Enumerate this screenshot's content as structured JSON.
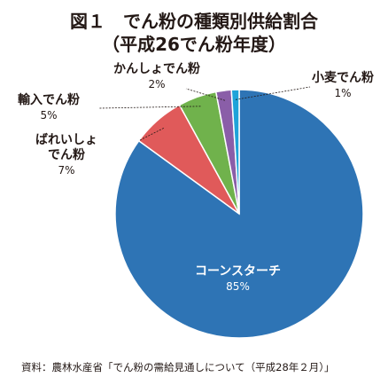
{
  "title": "図１　でん粉の種類別供給割合",
  "subtitle": "（平成26でん粉年度）",
  "source": "資料：農林水産省「でん粉の需給見通しについて（平成28年２月）」",
  "chart_data": {
    "type": "pie",
    "title": "図１　でん粉の種類別供給割合",
    "subtitle": "（平成26でん粉年度）",
    "start": "12 o'clock, clockwise",
    "slices": [
      {
        "name": "コーンスターチ",
        "value": 85,
        "label": "85%",
        "color": "#2e74b5"
      },
      {
        "name": "ばれいしょでん粉",
        "name_lines": [
          "ばれいしょ",
          "でん粉"
        ],
        "value": 7,
        "label": "7%",
        "color": "#e05a5a"
      },
      {
        "name": "輸入でん粉",
        "value": 5,
        "label": "5%",
        "color": "#70b24c"
      },
      {
        "name": "かんしょでん粉",
        "value": 2,
        "label": "2%",
        "color": "#8a5ea8"
      },
      {
        "name": "小麦でん粉",
        "value": 1,
        "label": "1%",
        "color": "#1fa3d9"
      }
    ]
  }
}
